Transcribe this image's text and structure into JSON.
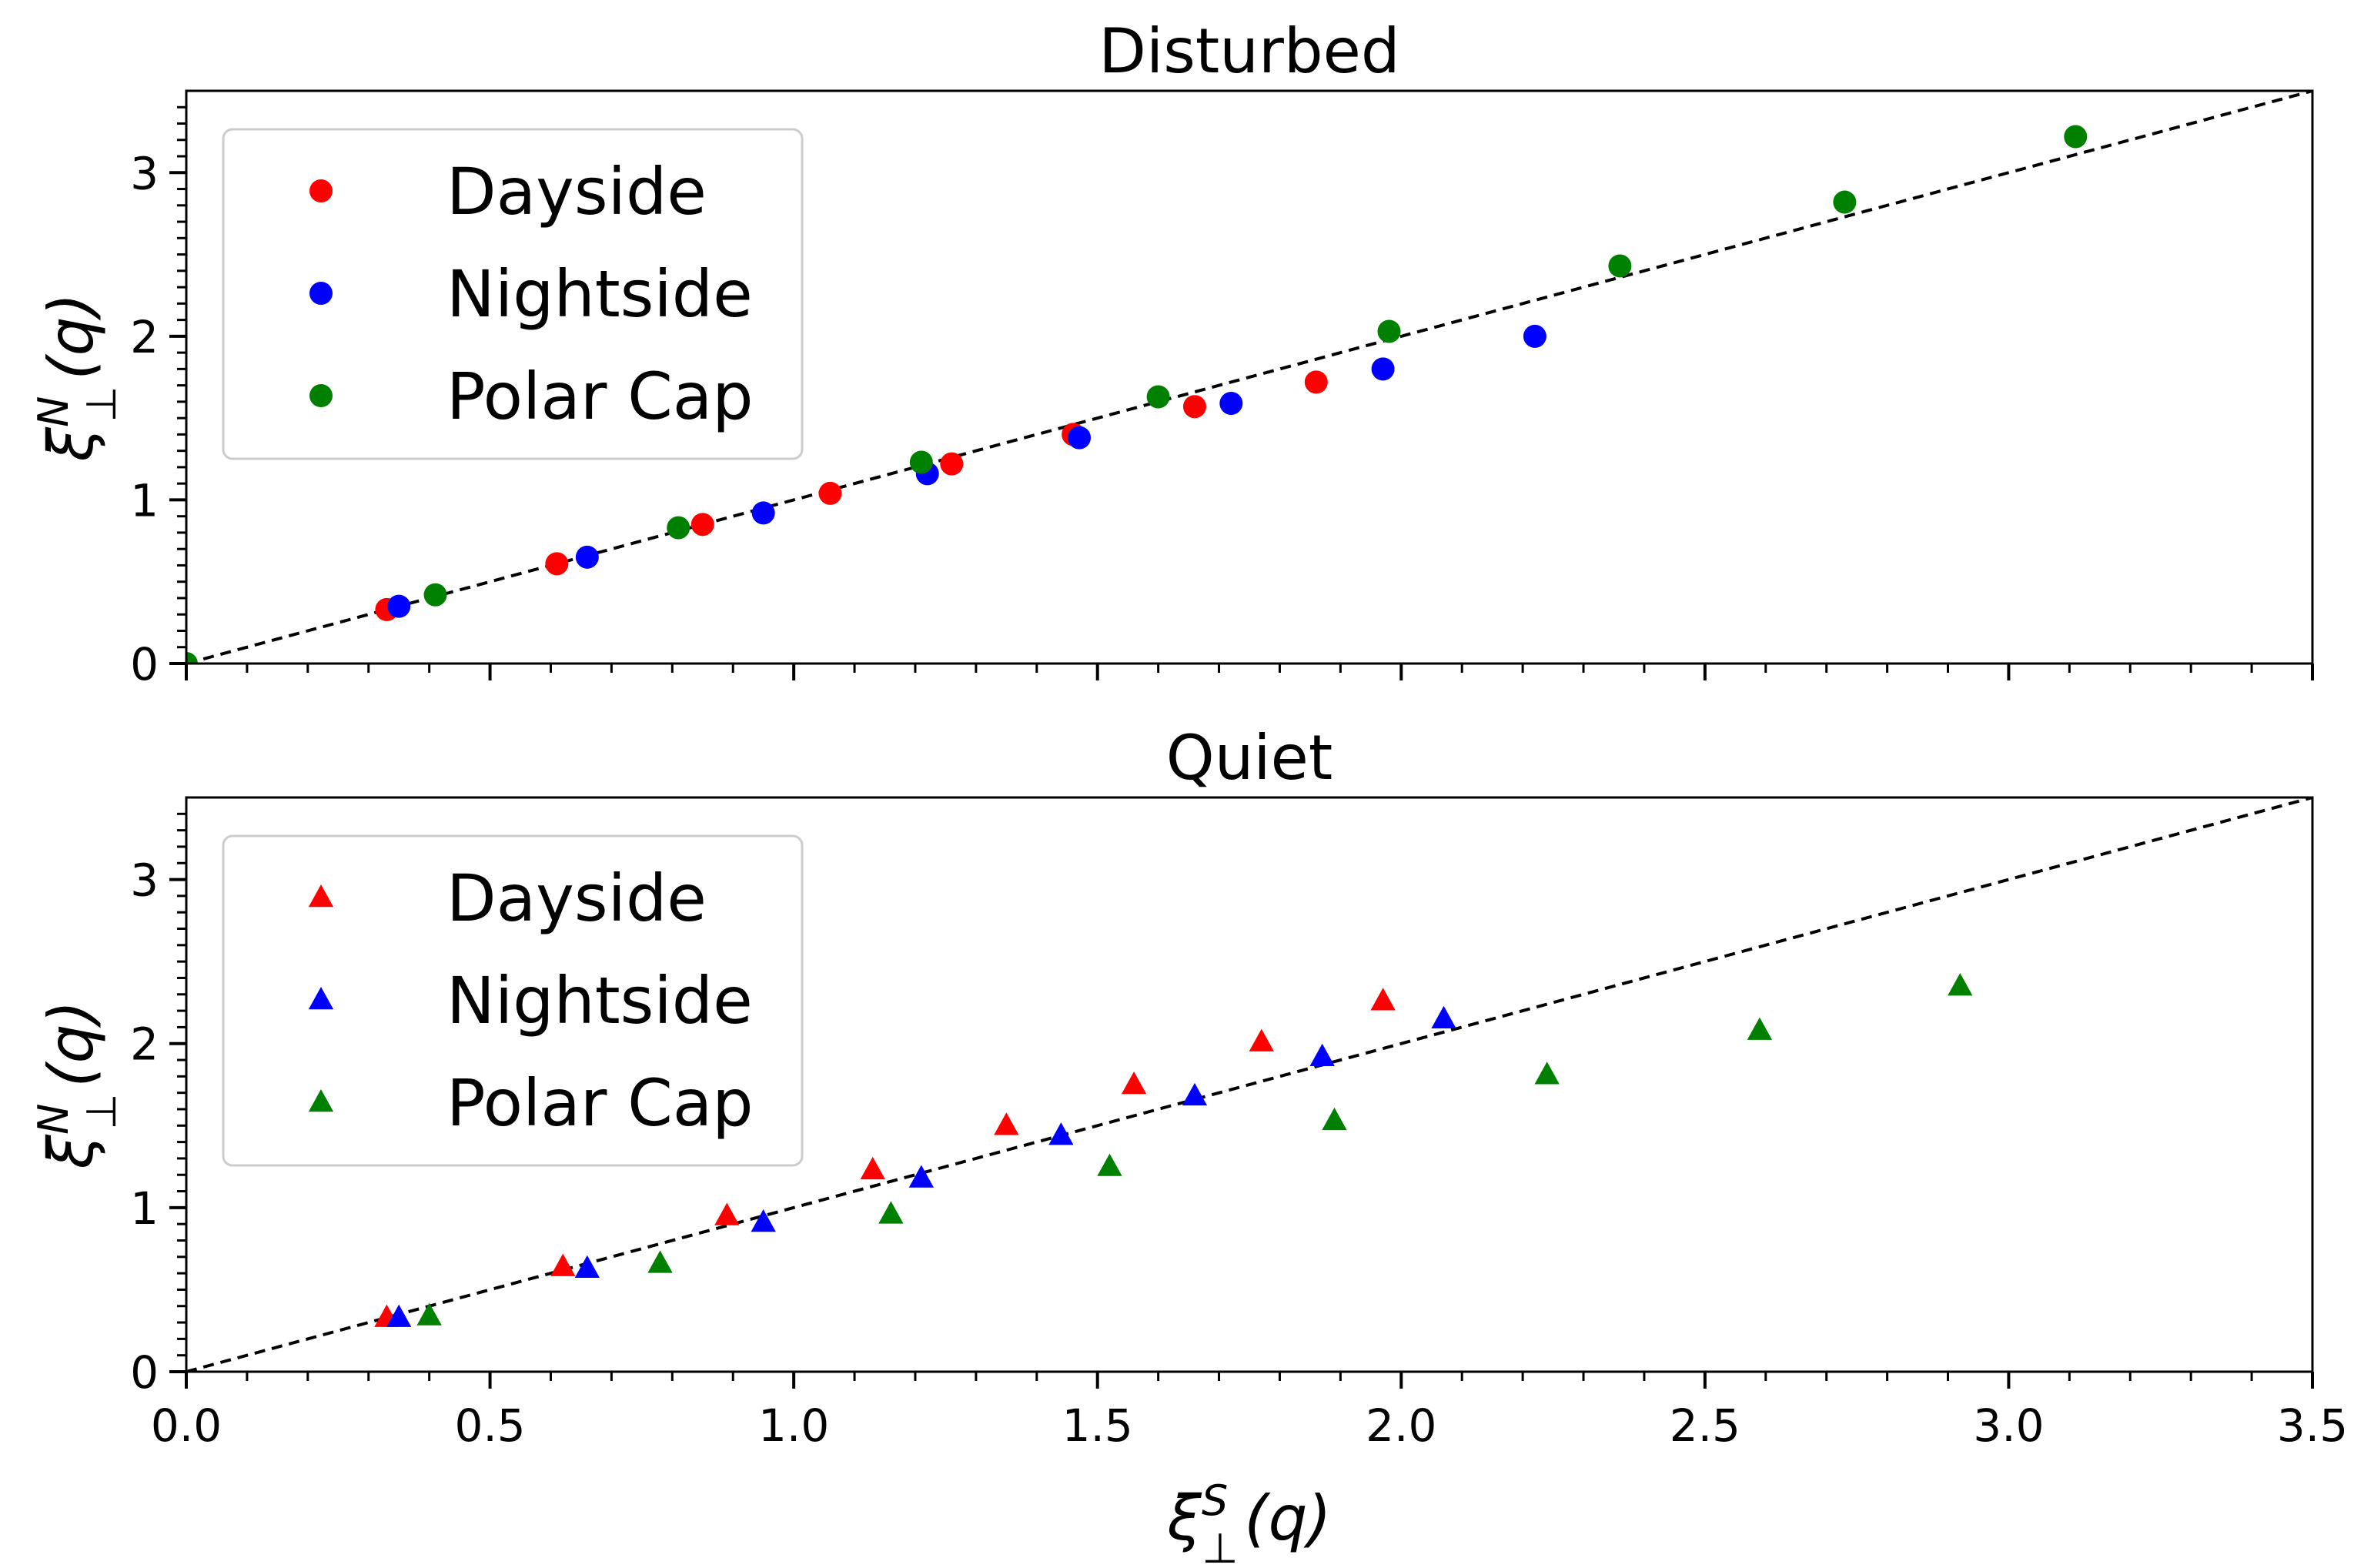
{
  "chart_data": [
    {
      "type": "scatter",
      "title": "Disturbed",
      "marker": "circle",
      "xlim": [
        0,
        3.5
      ],
      "ylim": [
        0,
        3.5
      ],
      "xticks": [
        0.0,
        0.5,
        1.0,
        1.5,
        2.0,
        2.5,
        3.0,
        3.5
      ],
      "xtick_labels": [],
      "yticks": [
        0,
        1,
        2,
        3
      ],
      "ytick_labels": [
        "0",
        "1",
        "2",
        "3"
      ],
      "xlabel": null,
      "ylabel": {
        "base": "ξ",
        "sub": "⊥",
        "sup": "N",
        "arg": "(q)"
      },
      "legend_position": "upper-left",
      "reference_line": {
        "style": "dashed",
        "color": "#000000",
        "from": [
          0,
          0
        ],
        "to": [
          3.5,
          3.5
        ]
      },
      "series": [
        {
          "name": "Dayside",
          "color": "#ff0000",
          "x": [
            0.33,
            0.61,
            0.85,
            1.06,
            1.26,
            1.46,
            1.66,
            1.86
          ],
          "y": [
            0.33,
            0.61,
            0.85,
            1.04,
            1.22,
            1.4,
            1.57,
            1.72
          ]
        },
        {
          "name": "Nightside",
          "color": "#0000ff",
          "x": [
            0.35,
            0.66,
            0.95,
            1.22,
            1.47,
            1.72,
            1.97,
            2.22
          ],
          "y": [
            0.35,
            0.65,
            0.92,
            1.16,
            1.38,
            1.59,
            1.8,
            2.0
          ]
        },
        {
          "name": "Polar Cap",
          "color": "#008000",
          "x": [
            0.0,
            0.41,
            0.81,
            1.21,
            1.6,
            1.98,
            2.36,
            2.73,
            3.11
          ],
          "y": [
            0.0,
            0.42,
            0.83,
            1.23,
            1.63,
            2.03,
            2.43,
            2.82,
            3.22
          ]
        }
      ]
    },
    {
      "type": "scatter",
      "title": "Quiet",
      "marker": "triangle",
      "xlim": [
        0,
        3.5
      ],
      "ylim": [
        0,
        3.5
      ],
      "xticks": [
        0.0,
        0.5,
        1.0,
        1.5,
        2.0,
        2.5,
        3.0,
        3.5
      ],
      "xtick_labels": [
        "0.0",
        "0.5",
        "1.0",
        "1.5",
        "2.0",
        "2.5",
        "3.0",
        "3.5"
      ],
      "yticks": [
        0,
        1,
        2,
        3
      ],
      "ytick_labels": [
        "0",
        "1",
        "2",
        "3"
      ],
      "xlabel": {
        "base": "ξ",
        "sub": "⊥",
        "sup": "S",
        "arg": "(q)"
      },
      "ylabel": {
        "base": "ξ",
        "sub": "⊥",
        "sup": "N",
        "arg": "(q)"
      },
      "legend_position": "upper-left",
      "reference_line": {
        "style": "dashed",
        "color": "#000000",
        "from": [
          0,
          0
        ],
        "to": [
          3.5,
          3.5
        ]
      },
      "series": [
        {
          "name": "Dayside",
          "color": "#ff0000",
          "x": [
            0.33,
            0.62,
            0.89,
            1.13,
            1.35,
            1.56,
            1.77,
            1.97
          ],
          "y": [
            0.33,
            0.64,
            0.95,
            1.23,
            1.5,
            1.75,
            2.01,
            2.26
          ]
        },
        {
          "name": "Nightside",
          "color": "#0000ff",
          "x": [
            0.35,
            0.66,
            0.95,
            1.21,
            1.44,
            1.66,
            1.87,
            2.07
          ],
          "y": [
            0.33,
            0.63,
            0.91,
            1.18,
            1.44,
            1.68,
            1.92,
            2.15
          ]
        },
        {
          "name": "Polar Cap",
          "color": "#008000",
          "x": [
            0.4,
            0.78,
            1.16,
            1.52,
            1.89,
            2.24,
            2.59,
            2.92
          ],
          "y": [
            0.34,
            0.66,
            0.96,
            1.25,
            1.53,
            1.81,
            2.08,
            2.35
          ]
        }
      ]
    }
  ]
}
